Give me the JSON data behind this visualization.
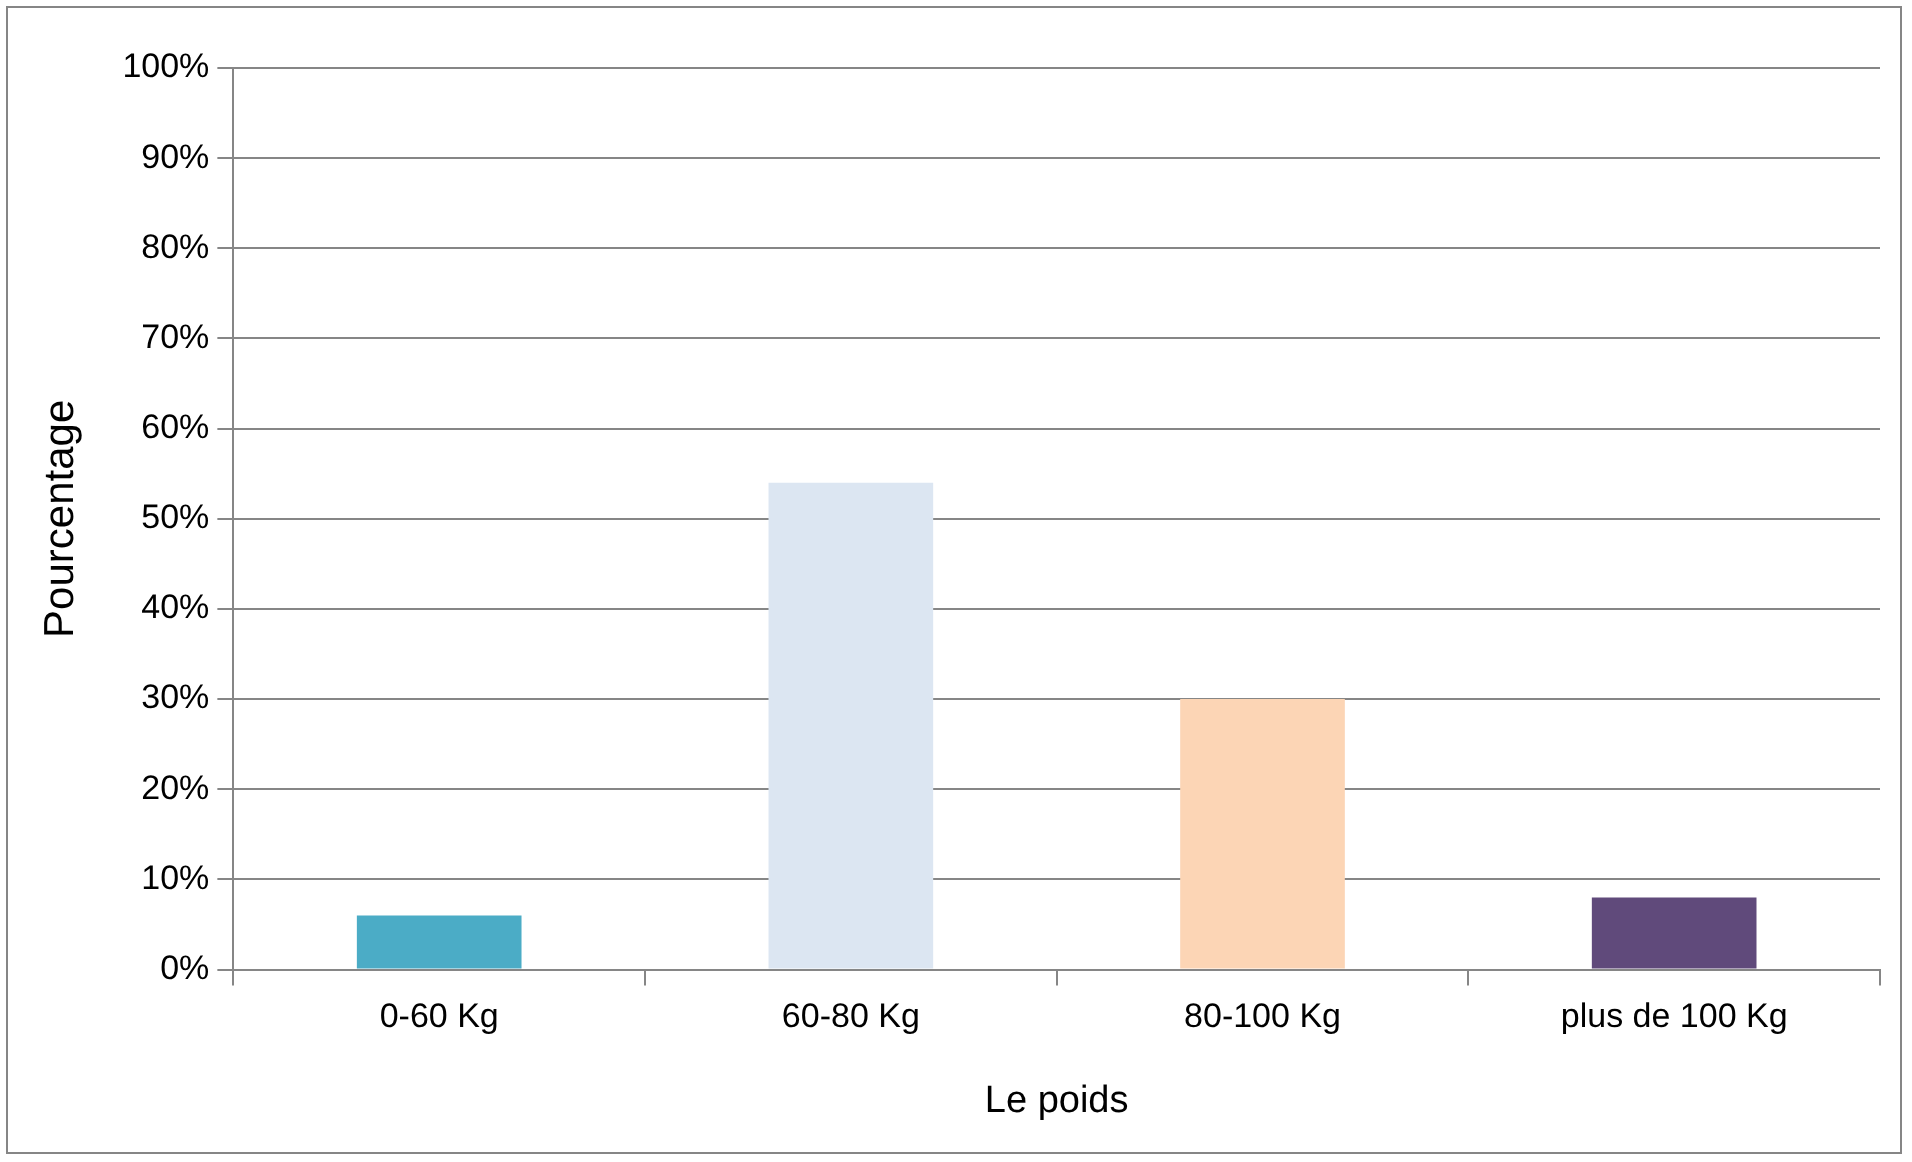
{
  "chart_data": {
    "type": "bar",
    "xlabel": "Le poids",
    "ylabel": "Pourcentage",
    "categories": [
      "0-60 Kg",
      "60-80 Kg",
      "80-100 Kg",
      "plus de 100 Kg"
    ],
    "values": [
      6,
      54,
      30,
      8
    ],
    "colors": [
      "#4bacc6",
      "#dce6f2",
      "#fcd5b5",
      "#604a7b"
    ],
    "ylim": [
      0,
      100
    ],
    "yticks": [
      {
        "value": 0,
        "label": "0%"
      },
      {
        "value": 10,
        "label": "10%"
      },
      {
        "value": 20,
        "label": "20%"
      },
      {
        "value": 30,
        "label": "30%"
      },
      {
        "value": 40,
        "label": "40%"
      },
      {
        "value": 50,
        "label": "50%"
      },
      {
        "value": 60,
        "label": "60%"
      },
      {
        "value": 70,
        "label": "70%"
      },
      {
        "value": 80,
        "label": "80%"
      },
      {
        "value": 90,
        "label": "90%"
      },
      {
        "value": 100,
        "label": "100%"
      }
    ],
    "grid": "y",
    "legend": false
  }
}
